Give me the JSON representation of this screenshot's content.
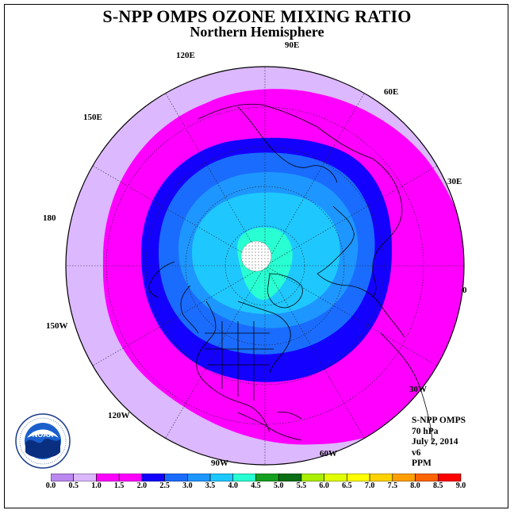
{
  "header": {
    "title": "S-NPP OMPS OZONE MIXING RATIO",
    "subtitle": "Northern Hemisphere"
  },
  "map": {
    "projection": "north-polar-stereographic",
    "center_rotation_deg_for_0_lon": 0,
    "longitude_labels": [
      "90E",
      "60E",
      "30E",
      "0",
      "30W",
      "60W",
      "90W",
      "120W",
      "150W",
      "180",
      "150E",
      "120E"
    ],
    "no_data_region": "north pole (white dotted)"
  },
  "info": {
    "satellite": "S-NPP OMPS",
    "level": "70 hPa",
    "date": "July 2, 2014",
    "version": "v6",
    "units": "PPM"
  },
  "colorbar": {
    "labels": [
      "0.0",
      "0.5",
      "1.0",
      "1.5",
      "2.0",
      "2.5",
      "3.0",
      "3.5",
      "4.0",
      "4.5",
      "5.0",
      "5.5",
      "6.0",
      "6.5",
      "7.0",
      "7.5",
      "8.0",
      "8.5",
      "9.0"
    ],
    "colors": [
      "#bb88f0",
      "#dcb8ff",
      "#ff00ff",
      "#ff00ff",
      "#1400ff",
      "#1a6cff",
      "#1e96ff",
      "#1ec8ff",
      "#28ffd2",
      "#14a01e",
      "#0a6e14",
      "#aaee00",
      "#e1ff00",
      "#ffff00",
      "#ffd200",
      "#ffa000",
      "#ff6400",
      "#ff0000",
      "#8b4513"
    ]
  },
  "logo": {
    "text": "NOAA"
  }
}
